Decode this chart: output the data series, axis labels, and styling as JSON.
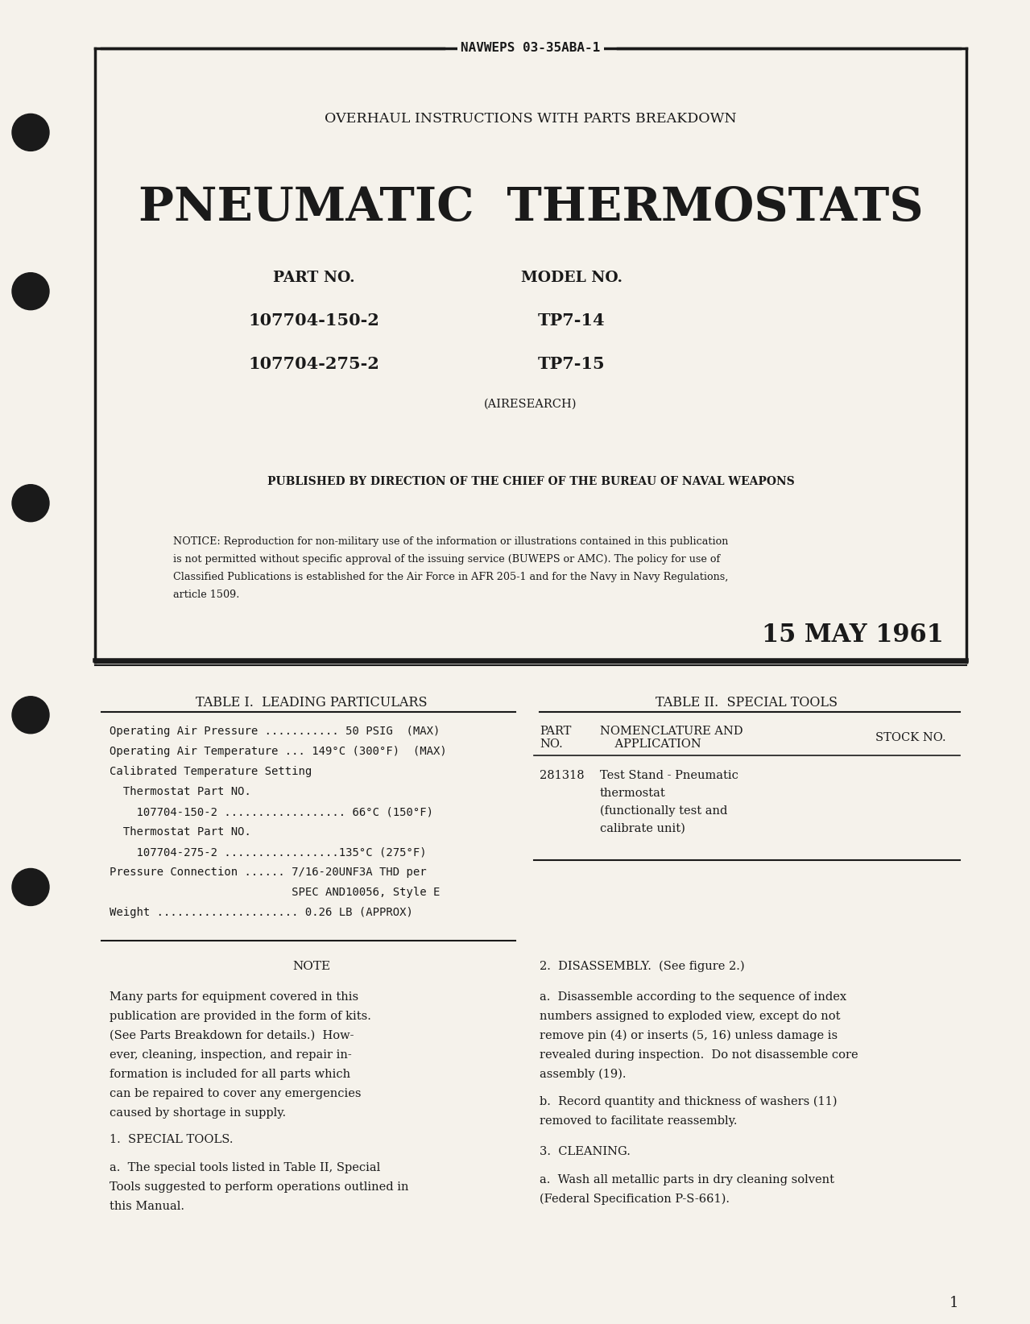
{
  "bg_color": "#f5f2eb",
  "border_color": "#1a1a1a",
  "text_color": "#1a1a1a",
  "header_label": "NAVWEPS 03-35ABA-1",
  "subtitle": "OVERHAUL INSTRUCTIONS WITH PARTS BREAKDOWN",
  "main_title": "PNEUMATIC  THERMOSTATS",
  "part_label": "PART NO.",
  "model_label": "MODEL NO.",
  "part1": "107704-150-2",
  "model1": "TP7-14",
  "part2": "107704-275-2",
  "model2": "TP7-15",
  "airesearch": "(AIRESEARCH)",
  "published": "PUBLISHED BY DIRECTION OF THE CHIEF OF THE BUREAU OF NAVAL WEAPONS",
  "notice_lines": [
    "NOTICE: Reproduction for non-military use of the information or illustrations contained in this publication",
    "is not permitted without specific approval of the issuing service (BUWEPS or AMC). The policy for use of",
    "Classified Publications is established for the Air Force in AFR 205-1 and for the Navy in Navy Regulations,",
    "article 1509."
  ],
  "date": "15 MAY 1961",
  "table1_title": "TABLE I.  LEADING PARTICULARS",
  "table1_lines": [
    "Operating Air Pressure ........... 50 PSIG  (MAX)",
    "Operating Air Temperature ... 149°C (300°F)  (MAX)",
    "Calibrated Temperature Setting",
    "  Thermostat Part NO.",
    "    107704-150-2 .................. 66°C (150°F)",
    "  Thermostat Part NO.",
    "    107704-275-2 .................135°C (275°F)",
    "Pressure Connection ...... 7/16-20UNF3A THD per",
    "                           SPEC AND10056, Style E",
    "Weight ..................... 0.26 LB (APPROX)"
  ],
  "table2_title": "TABLE II.  SPECIAL TOOLS",
  "table2_part_hdr1": "PART",
  "table2_part_hdr2": "NO.",
  "table2_nom_hdr1": "NOMENCLATURE AND",
  "table2_nom_hdr2": "    APPLICATION",
  "table2_stock_hdr": "STOCK NO.",
  "table2_part": "281318",
  "table2_desc_lines": [
    "Test Stand - Pneumatic",
    "thermostat",
    "(functionally test and",
    "calibrate unit)"
  ],
  "note_title": "NOTE",
  "note_lines": [
    "Many parts for equipment covered in this",
    "publication are provided in the form of kits.",
    "(See Parts Breakdown for details.)  How-",
    "ever, cleaning, inspection, and repair in-",
    "formation is included for all parts which",
    "can be repaired to cover any emergencies",
    "caused by shortage in supply."
  ],
  "section1_title": "1.  SPECIAL TOOLS.",
  "section1_lines": [
    "a.  The special tools listed in Table II, Special",
    "Tools suggested to perform operations outlined in",
    "this Manual."
  ],
  "section2_title": "2.  DISASSEMBLY.  (See figure 2.)",
  "section2a_lines": [
    "a.  Disassemble according to the sequence of index",
    "numbers assigned to exploded view, except do not",
    "remove pin (4) or inserts (5, 16) unless damage is",
    "revealed during inspection.  Do not disassemble core",
    "assembly (19)."
  ],
  "section2b_lines": [
    "b.  Record quantity and thickness of washers (11)",
    "removed to facilitate reassembly."
  ],
  "section3_title": "3.  CLEANING.",
  "section3a_lines": [
    "a.  Wash all metallic parts in dry cleaning solvent",
    "(Federal Specification P-S-661)."
  ],
  "page_number": "1",
  "hole_color": "#1a1a1a"
}
